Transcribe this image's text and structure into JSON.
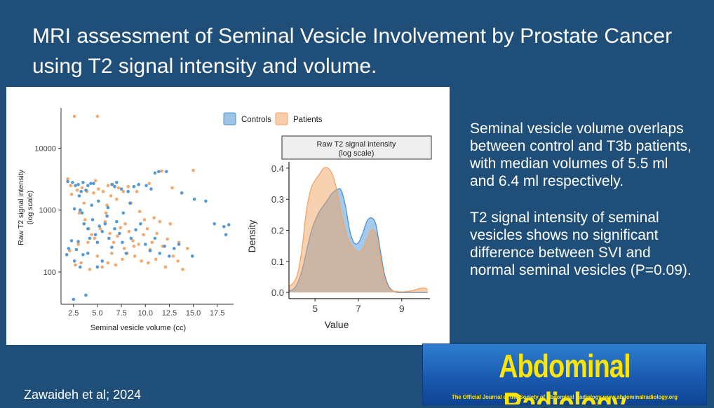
{
  "slide": {
    "title": "MRI assessment of Seminal Vesicle Involvement by Prostate Cancer using T2 signal intensity and volume.",
    "paragraph1": "Seminal vesicle volume overlaps between control and T3b patients, with median volumes of 5.5 ml and 6.4 ml respectively.",
    "paragraph2": "T2 signal intensity of seminal vesicles shows no significant difference between SVI and normal seminal vesicles (P=0.09).",
    "citation": "Zawaideh et al; 2024",
    "journal_name": "Abdominal Radiology",
    "journal_tagline": "The Official Journal of the Society of Abdominal Radiology  www.abdominalradiology.org"
  },
  "colors": {
    "controls": "#4c93d3",
    "patients": "#f2a464"
  },
  "chart_data": [
    {
      "type": "scatter",
      "xlabel": "Seminal vesicle volume (cc)",
      "ylabel": "Raw T2 signal intensity (log scale)",
      "ylabel_lines": [
        "Raw T2 signal intensity",
        "(log scale)"
      ],
      "xlim": [
        1.2,
        19.2
      ],
      "ylim_log": [
        30,
        45000
      ],
      "x_ticks": [
        2.5,
        5.0,
        7.5,
        10.0,
        12.5,
        15.0,
        17.5
      ],
      "x_tick_labels": [
        "2.5",
        "5.0",
        "7.5",
        "10.0",
        "12.5",
        "15.0",
        "17.5"
      ],
      "y_ticks": [
        100,
        1000,
        10000
      ],
      "y_tick_labels": [
        "100",
        "1000",
        "10000"
      ],
      "legend": [
        "Controls",
        "Patients"
      ],
      "series": [
        {
          "name": "Controls",
          "points": [
            [
              1.8,
              190
            ],
            [
              2.0,
              240
            ],
            [
              2.3,
              320
            ],
            [
              2.6,
              150
            ],
            [
              2.8,
              230
            ],
            [
              3.0,
              310
            ],
            [
              3.2,
              120
            ],
            [
              3.5,
              190
            ],
            [
              2.5,
              36
            ],
            [
              3.8,
              42
            ],
            [
              2.4,
              2800
            ],
            [
              2.7,
              2500
            ],
            [
              3.0,
              2600
            ],
            [
              3.3,
              2000
            ],
            [
              3.5,
              2800
            ],
            [
              3.8,
              2100
            ],
            [
              4.0,
              2500
            ],
            [
              4.3,
              2700
            ],
            [
              2.6,
              1050
            ],
            [
              3.1,
              1700
            ],
            [
              3.4,
              900
            ],
            [
              3.6,
              600
            ],
            [
              4.0,
              500
            ],
            [
              4.2,
              350
            ],
            [
              4.5,
              700
            ],
            [
              4.8,
              400
            ],
            [
              5.0,
              300
            ],
            [
              5.2,
              550
            ],
            [
              5.5,
              450
            ],
            [
              5.8,
              600
            ],
            [
              6.0,
              800
            ],
            [
              6.2,
              350
            ],
            [
              6.5,
              250
            ],
            [
              6.8,
              500
            ],
            [
              7.0,
              650
            ],
            [
              7.3,
              420
            ],
            [
              7.6,
              300
            ],
            [
              8.0,
              200
            ],
            [
              8.5,
              350
            ],
            [
              9.0,
              480
            ],
            [
              9.5,
              600
            ],
            [
              10.0,
              280
            ],
            [
              10.5,
              220
            ],
            [
              11.0,
              350
            ],
            [
              11.5,
              200
            ],
            [
              12.0,
              260
            ],
            [
              12.5,
              180
            ],
            [
              13.0,
              240
            ],
            [
              13.5,
              280
            ],
            [
              8.2,
              2000
            ],
            [
              8.8,
              2400
            ],
            [
              9.3,
              2600
            ],
            [
              10.1,
              2500
            ],
            [
              10.6,
              2200
            ],
            [
              11.0,
              4000
            ],
            [
              11.4,
              4200
            ],
            [
              6.5,
              2600
            ],
            [
              7.0,
              2800
            ],
            [
              7.5,
              2200
            ],
            [
              13.8,
              1900
            ],
            [
              15.1,
              1500
            ],
            [
              16.3,
              1400
            ],
            [
              17.2,
              600
            ],
            [
              18.4,
              400
            ],
            [
              18.7,
              580
            ],
            [
              18.2,
              540
            ],
            [
              12.2,
              4200
            ],
            [
              14.9,
              180
            ],
            [
              5.0,
              120
            ],
            [
              5.5,
              150
            ],
            [
              4.0,
              200
            ],
            [
              4.6,
              2700
            ],
            [
              6.8,
              2400
            ],
            [
              1.9,
              2900
            ],
            [
              3.2,
              1000
            ],
            [
              4.4,
              1200
            ],
            [
              5.1,
              1400
            ],
            [
              6.1,
              1100
            ],
            [
              7.7,
              900
            ],
            [
              8.4,
              1300
            ]
          ]
        },
        {
          "name": "Patients",
          "points": [
            [
              2.6,
              33000
            ],
            [
              5.0,
              33000
            ],
            [
              1.9,
              3200
            ],
            [
              2.2,
              2500
            ],
            [
              2.9,
              2100
            ],
            [
              3.4,
              2300
            ],
            [
              3.9,
              2000
            ],
            [
              4.6,
              1900
            ],
            [
              5.1,
              2200
            ],
            [
              5.6,
              2000
            ],
            [
              6.1,
              2500
            ],
            [
              6.6,
              2600
            ],
            [
              7.2,
              2300
            ],
            [
              7.7,
              2000
            ],
            [
              8.2,
              2400
            ],
            [
              9.1,
              2000
            ],
            [
              10.4,
              2700
            ],
            [
              11.7,
              4300
            ],
            [
              12.8,
              2300
            ],
            [
              15.0,
              4400
            ],
            [
              3.1,
              900
            ],
            [
              3.7,
              700
            ],
            [
              4.1,
              500
            ],
            [
              4.4,
              400
            ],
            [
              4.7,
              350
            ],
            [
              5.3,
              500
            ],
            [
              5.8,
              650
            ],
            [
              6.3,
              420
            ],
            [
              6.7,
              300
            ],
            [
              7.1,
              380
            ],
            [
              7.4,
              520
            ],
            [
              7.9,
              600
            ],
            [
              8.3,
              450
            ],
            [
              8.7,
              320
            ],
            [
              9.3,
              280
            ],
            [
              9.8,
              400
            ],
            [
              10.2,
              500
            ],
            [
              10.7,
              300
            ],
            [
              11.2,
              420
            ],
            [
              11.8,
              260
            ],
            [
              12.3,
              340
            ],
            [
              12.9,
              180
            ],
            [
              13.4,
              150
            ],
            [
              13.9,
              110
            ],
            [
              2.7,
              130
            ],
            [
              3.3,
              140
            ],
            [
              4.2,
              110
            ],
            [
              5.5,
              120
            ],
            [
              6.1,
              140
            ],
            [
              6.9,
              130
            ],
            [
              7.6,
              160
            ],
            [
              8.1,
              200
            ],
            [
              8.9,
              180
            ],
            [
              9.6,
              150
            ],
            [
              10.3,
              140
            ],
            [
              11.1,
              160
            ],
            [
              12.1,
              120
            ],
            [
              6.0,
              1200
            ],
            [
              7.0,
              1500
            ],
            [
              8.5,
              1300
            ],
            [
              9.4,
              950
            ],
            [
              10.9,
              750
            ],
            [
              14.4,
              240
            ],
            [
              13.5,
              300
            ],
            [
              4.8,
              3000
            ],
            [
              6.4,
              1700
            ],
            [
              3.6,
              1300
            ],
            [
              2.3,
              1800
            ],
            [
              5.9,
              900
            ],
            [
              9.9,
              700
            ],
            [
              11.5,
              650
            ],
            [
              12.6,
              600
            ],
            [
              2.1,
              220
            ],
            [
              3.0,
              280
            ],
            [
              4.0,
              300
            ],
            [
              5.0,
              180
            ],
            [
              6.5,
              200
            ],
            [
              7.8,
              240
            ],
            [
              8.8,
              260
            ],
            [
              10.5,
              230
            ]
          ]
        }
      ]
    },
    {
      "type": "area",
      "panel_title": "Raw T2 signal intensity (log scale)",
      "panel_title_lines": [
        "Raw T2 signal intensity",
        "(log scale)"
      ],
      "xlabel": "Value",
      "ylabel": "Density",
      "xlim": [
        3.8,
        10.3
      ],
      "ylim": [
        -0.02,
        0.42
      ],
      "x_ticks": [
        5,
        7,
        9
      ],
      "x_tick_labels": [
        "5",
        "7",
        "9"
      ],
      "y_ticks": [
        0.0,
        0.1,
        0.2,
        0.3,
        0.4
      ],
      "y_tick_labels": [
        "0.0",
        "0.1",
        "0.2",
        "0.3",
        "0.4"
      ],
      "x": [
        3.8,
        4.0,
        4.2,
        4.4,
        4.6,
        4.8,
        5.0,
        5.2,
        5.4,
        5.6,
        5.8,
        6.0,
        6.2,
        6.4,
        6.6,
        6.8,
        7.0,
        7.2,
        7.4,
        7.6,
        7.8,
        8.0,
        8.2,
        8.4,
        8.6,
        8.8,
        9.0,
        9.2,
        9.4,
        9.6,
        9.8,
        10.0,
        10.2
      ],
      "series": [
        {
          "name": "Controls",
          "values": [
            0.005,
            0.01,
            0.03,
            0.07,
            0.13,
            0.19,
            0.23,
            0.26,
            0.28,
            0.3,
            0.32,
            0.33,
            0.33,
            0.28,
            0.2,
            0.16,
            0.16,
            0.19,
            0.23,
            0.24,
            0.22,
            0.14,
            0.06,
            0.02,
            0.005,
            0.0,
            0.0,
            0.0,
            0.0,
            0.0,
            0.0,
            0.0,
            0.0
          ]
        },
        {
          "name": "Patients",
          "values": [
            0.02,
            0.03,
            0.06,
            0.14,
            0.26,
            0.33,
            0.36,
            0.38,
            0.4,
            0.4,
            0.38,
            0.33,
            0.26,
            0.2,
            0.16,
            0.14,
            0.13,
            0.14,
            0.17,
            0.2,
            0.19,
            0.12,
            0.05,
            0.015,
            0.005,
            0.003,
            0.002,
            0.003,
            0.005,
            0.008,
            0.012,
            0.014,
            0.01
          ]
        }
      ]
    }
  ]
}
